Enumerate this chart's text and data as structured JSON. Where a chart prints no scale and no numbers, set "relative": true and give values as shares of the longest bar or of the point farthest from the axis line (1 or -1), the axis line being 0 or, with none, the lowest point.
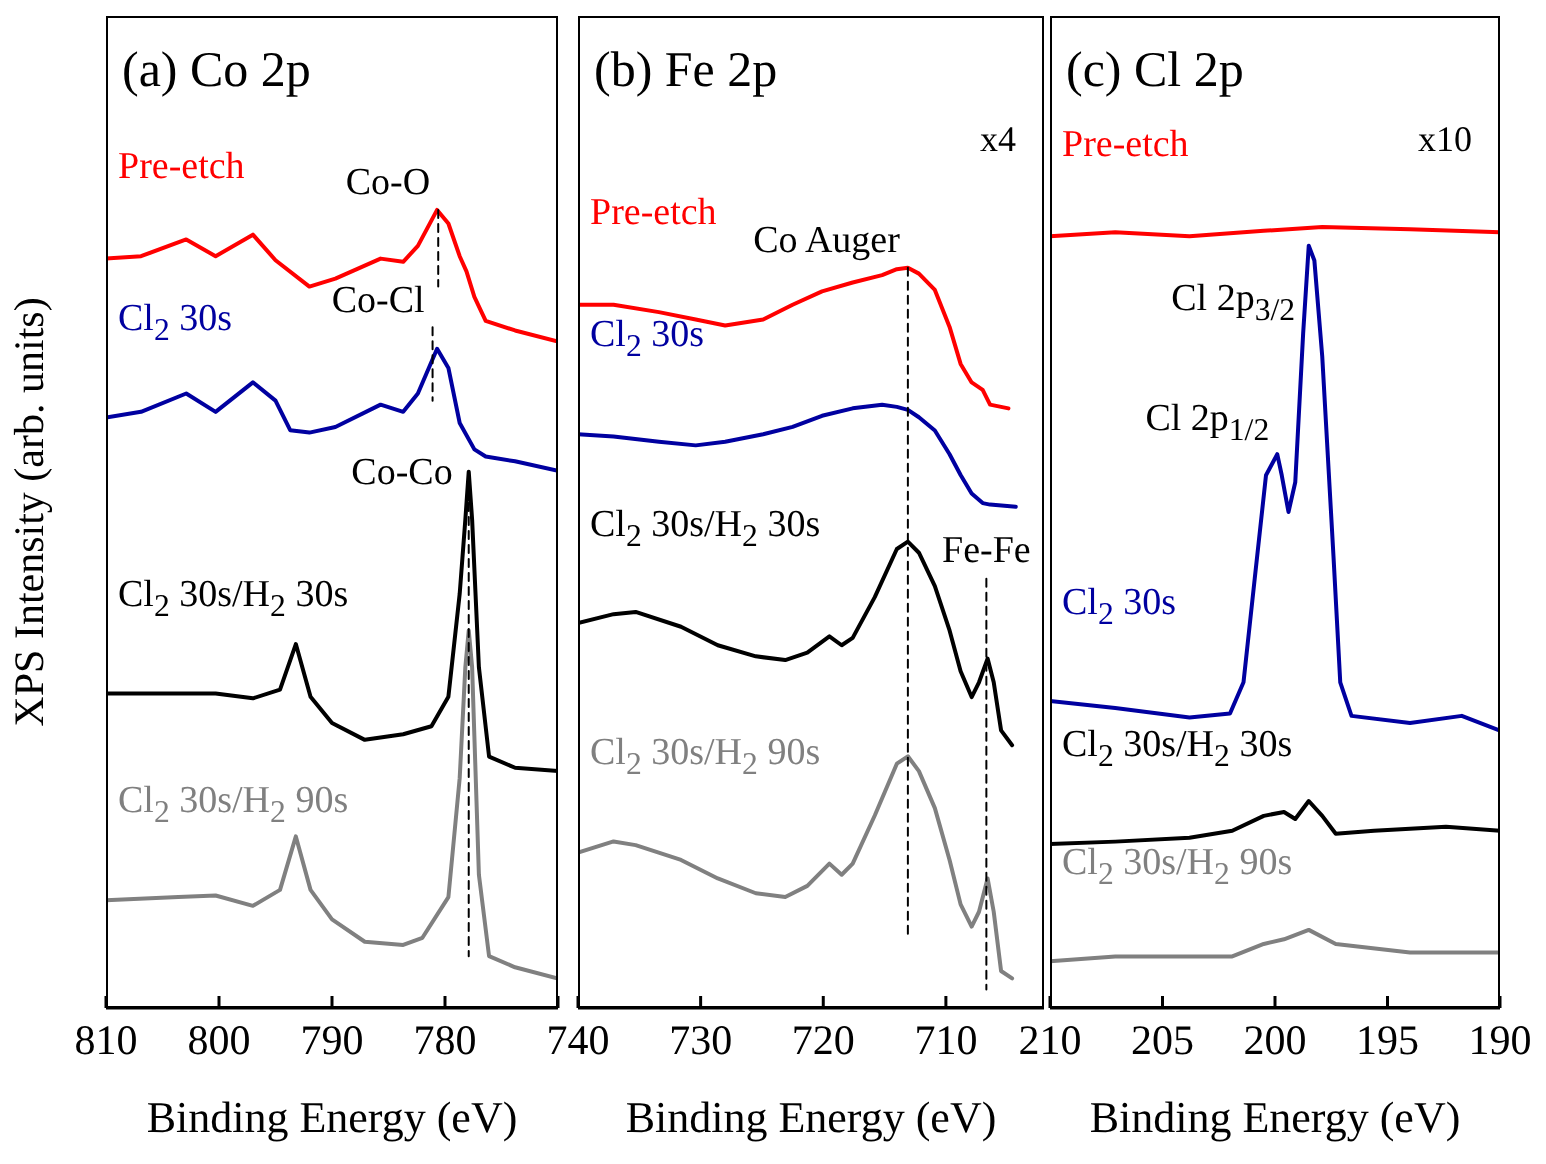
{
  "chart_data": [
    {
      "type": "line",
      "title": "(a) Co 2p",
      "xlabel": "Binding Energy (eV)",
      "ylabel": "XPS Intensity (arb. units)",
      "relative": true,
      "xlim": [
        810,
        770
      ],
      "xticks": [
        810,
        800,
        790,
        780,
        {
          "value": 770,
          "label": null
        }
      ],
      "tick_labels": "x",
      "grid": false,
      "series": [
        {
          "name": "Pre-etch",
          "color": "#ff0000",
          "x": [
            810,
            806.9,
            802.9,
            800.3,
            797.0,
            795.0,
            792.0,
            789.7,
            785.7,
            783.7,
            782.4,
            780.7,
            779.7,
            778.7,
            778.1,
            777.4,
            776.4,
            773.8,
            770
          ],
          "values": [
            0.939,
            0.942,
            0.963,
            0.942,
            0.969,
            0.937,
            0.904,
            0.914,
            0.939,
            0.935,
            0.955,
            1.0,
            0.983,
            0.942,
            0.923,
            0.891,
            0.861,
            0.849,
            0.835
          ]
        },
        {
          "name": "Cl$_{2}$ 30s",
          "color": "#0000a0",
          "x": [
            810,
            806.9,
            802.9,
            800.3,
            797.0,
            795.0,
            793.7,
            792.0,
            789.7,
            785.7,
            783.7,
            782.4,
            780.7,
            779.7,
            778.7,
            777.4,
            776.4,
            773.8,
            770
          ],
          "values": [
            0.74,
            0.747,
            0.77,
            0.747,
            0.784,
            0.761,
            0.724,
            0.721,
            0.728,
            0.756,
            0.747,
            0.77,
            0.826,
            0.802,
            0.733,
            0.7,
            0.691,
            0.685,
            0.673
          ]
        },
        {
          "name": "Cl$_{2}$ 30s/H$_{2}$ 30s",
          "color": "#000000",
          "x": [
            810,
            800.3,
            797.0,
            794.6,
            793.2,
            791.9,
            790,
            787.1,
            783.7,
            781.2,
            779.7,
            778.7,
            778.2,
            777.9,
            777.6,
            777.0,
            776.1,
            773.8,
            770
          ],
          "values": [
            0.394,
            0.394,
            0.388,
            0.399,
            0.456,
            0.39,
            0.357,
            0.336,
            0.343,
            0.353,
            0.39,
            0.519,
            0.612,
            0.672,
            0.612,
            0.427,
            0.315,
            0.301,
            0.297
          ]
        },
        {
          "name": "Cl$_{2}$ 30s/H$_{2}$ 90s",
          "color": "#808080",
          "x": [
            810,
            803.6,
            800.3,
            797.0,
            794.6,
            793.2,
            791.9,
            790,
            787.1,
            783.7,
            782,
            779.7,
            778.7,
            778.2,
            777.9,
            777.6,
            777.0,
            776.1,
            773.8,
            770
          ],
          "values": [
            0.135,
            0.139,
            0.141,
            0.128,
            0.148,
            0.215,
            0.148,
            0.111,
            0.083,
            0.079,
            0.088,
            0.139,
            0.288,
            0.427,
            0.473,
            0.427,
            0.167,
            0.065,
            0.051,
            0.037
          ]
        },
        {
          "color": "#000000",
          "line_style": "dashed",
          "x": [
            780.6,
            780.6
          ],
          "values": [
            1.0,
            0.904
          ]
        },
        {
          "color": "#000000",
          "line_style": "dashed",
          "x": [
            781.1,
            781.1
          ],
          "values": [
            0.853,
            0.761
          ]
        },
        {
          "color": "#000000",
          "line_style": "dashed",
          "x": [
            777.9,
            777.9
          ],
          "values": [
            0.668,
            0.065
          ]
        }
      ],
      "annotations": [
        {
          "text": "Co-O",
          "x": 780.6,
          "y": 1.0
        },
        {
          "text": "Co-Cl",
          "x": 781.1,
          "y": 0.853
        },
        {
          "text": "Co-Co",
          "x": 777.9,
          "y": 0.668
        }
      ]
    },
    {
      "type": "line",
      "title": "(b) Fe 2p",
      "xlabel": "Binding Energy (eV)",
      "relative": true,
      "xlim": [
        740,
        702
      ],
      "xticks": [
        740,
        730,
        720,
        710
      ],
      "tick_labels": "x",
      "grid": false,
      "series": [
        {
          "name": "Pre-etch",
          "color": "#ff0000",
          "x": [
            740,
            737.1,
            733.4,
            730.4,
            728.0,
            724.9,
            722.5,
            720.1,
            717.6,
            715.2,
            714.0,
            713.1,
            712.2,
            710.9,
            709.7,
            708.8,
            707.9,
            707.0,
            706.4,
            704.9
          ],
          "values": [
            0.95,
            0.95,
            0.94,
            0.93,
            0.922,
            0.93,
            0.95,
            0.968,
            0.98,
            0.99,
            0.998,
            1.0,
            0.992,
            0.97,
            0.92,
            0.87,
            0.845,
            0.835,
            0.815,
            0.81
          ]
        },
        {
          "name": "Cl$_{2}$ 30s",
          "color": "#0000a0",
          "x": [
            740,
            737.1,
            733.4,
            730.4,
            728.0,
            724.9,
            722.5,
            720.1,
            717.6,
            715.2,
            714.0,
            713.1,
            712.2,
            710.9,
            709.7,
            708.8,
            707.9,
            707.0,
            706.4,
            704.3
          ],
          "values": [
            0.775,
            0.772,
            0.765,
            0.76,
            0.765,
            0.775,
            0.785,
            0.8,
            0.81,
            0.815,
            0.812,
            0.808,
            0.798,
            0.78,
            0.748,
            0.72,
            0.695,
            0.682,
            0.68,
            0.677
          ]
        },
        {
          "name": "Cl$_{2}$ 30s/H$_{2}$ 30s",
          "color": "#000000",
          "x": [
            740,
            737.1,
            735.3,
            731.6,
            728.6,
            725.5,
            723.1,
            721.3,
            719.5,
            718.5,
            717.6,
            715.8,
            714.0,
            713.1,
            712.2,
            710.9,
            709.7,
            708.8,
            707.9,
            707.3,
            706.6,
            706.1,
            705.5,
            704.6
          ],
          "values": [
            0.52,
            0.532,
            0.535,
            0.515,
            0.49,
            0.475,
            0.47,
            0.48,
            0.502,
            0.49,
            0.5,
            0.555,
            0.62,
            0.63,
            0.615,
            0.57,
            0.51,
            0.455,
            0.42,
            0.44,
            0.472,
            0.44,
            0.375,
            0.355
          ]
        },
        {
          "name": "Cl$_{2}$ 30s/H$_{2}$ 90s",
          "color": "#808080",
          "x": [
            740,
            737.1,
            735.3,
            731.6,
            728.6,
            725.5,
            723.1,
            721.3,
            719.5,
            718.5,
            717.6,
            715.8,
            714.0,
            713.1,
            712.2,
            710.9,
            709.7,
            708.8,
            707.9,
            707.3,
            706.6,
            706.1,
            705.5,
            704.6
          ],
          "values": [
            0.21,
            0.225,
            0.22,
            0.2,
            0.175,
            0.155,
            0.15,
            0.165,
            0.195,
            0.18,
            0.195,
            0.26,
            0.33,
            0.34,
            0.32,
            0.27,
            0.2,
            0.14,
            0.11,
            0.13,
            0.175,
            0.13,
            0.05,
            0.04
          ]
        },
        {
          "color": "#000000",
          "line_style": "dashed",
          "x": [
            713.1,
            713.1
          ],
          "values": [
            1.0,
            0.1
          ]
        },
        {
          "color": "#000000",
          "line_style": "dashed",
          "x": [
            706.7,
            706.7
          ],
          "values": [
            0.58,
            0.025
          ]
        }
      ],
      "annotations": [
        "x4",
        {
          "text": "Co Auger",
          "x": 713.1,
          "y": 1.0
        },
        {
          "text": "Fe-Fe",
          "x": 706.7,
          "y": 0.58
        }
      ]
    },
    {
      "type": "line",
      "title": "(c) Cl 2p",
      "xlabel": "Binding Energy (eV)",
      "relative": true,
      "xlim": [
        210,
        190
      ],
      "xticks": [
        210,
        205,
        200,
        195,
        190
      ],
      "tick_labels": "x",
      "grid": false,
      "series": [
        {
          "name": "Pre-etch",
          "color": "#ff0000",
          "x": [
            210,
            207.1,
            203.8,
            200.5,
            197.9,
            194,
            190
          ],
          "values": [
            0.988,
            0.993,
            0.988,
            0.995,
            1.0,
            0.997,
            0.993
          ]
        },
        {
          "name": "Cl$_{2}$ 30s",
          "color": "#0000a0",
          "x": [
            210,
            207.1,
            203.8,
            202.0,
            201.4,
            200.9,
            200.4,
            199.9,
            199.7,
            199.4,
            199.1,
            198.75,
            198.5,
            198.25,
            197.9,
            197.4,
            197.1,
            196.6,
            194.0,
            191.7,
            190
          ],
          "values": [
            0.393,
            0.384,
            0.372,
            0.377,
            0.417,
            0.55,
            0.682,
            0.709,
            0.682,
            0.635,
            0.673,
            0.863,
            0.976,
            0.957,
            0.834,
            0.578,
            0.417,
            0.374,
            0.365,
            0.374,
            0.355
          ]
        },
        {
          "name": "Cl$_{2}$ 30s/H$_{2}$ 30s",
          "color": "#000000",
          "x": [
            210,
            207.1,
            203.8,
            201.9,
            200.5,
            199.6,
            199.1,
            198.5,
            197.9,
            197.3,
            195.6,
            192.4,
            190
          ],
          "values": [
            0.21,
            0.213,
            0.218,
            0.227,
            0.246,
            0.251,
            0.242,
            0.265,
            0.246,
            0.223,
            0.227,
            0.232,
            0.227
          ]
        },
        {
          "name": "Cl$_{2}$ 30s/H$_{2}$ 90s",
          "color": "#808080",
          "x": [
            210,
            207.1,
            203.8,
            201.9,
            200.5,
            199.6,
            198.5,
            197.3,
            194,
            190
          ],
          "values": [
            0.06,
            0.066,
            0.066,
            0.066,
            0.082,
            0.088,
            0.1,
            0.082,
            0.071,
            0.071
          ]
        }
      ],
      "annotations": [
        "x10",
        {
          "text": "Cl 2p$_{3/2}$",
          "x": 198.75,
          "y": 0.863
        },
        {
          "text": "Cl 2p$_{1/2}$",
          "x": 199.9,
          "y": 0.709
        }
      ]
    }
  ]
}
